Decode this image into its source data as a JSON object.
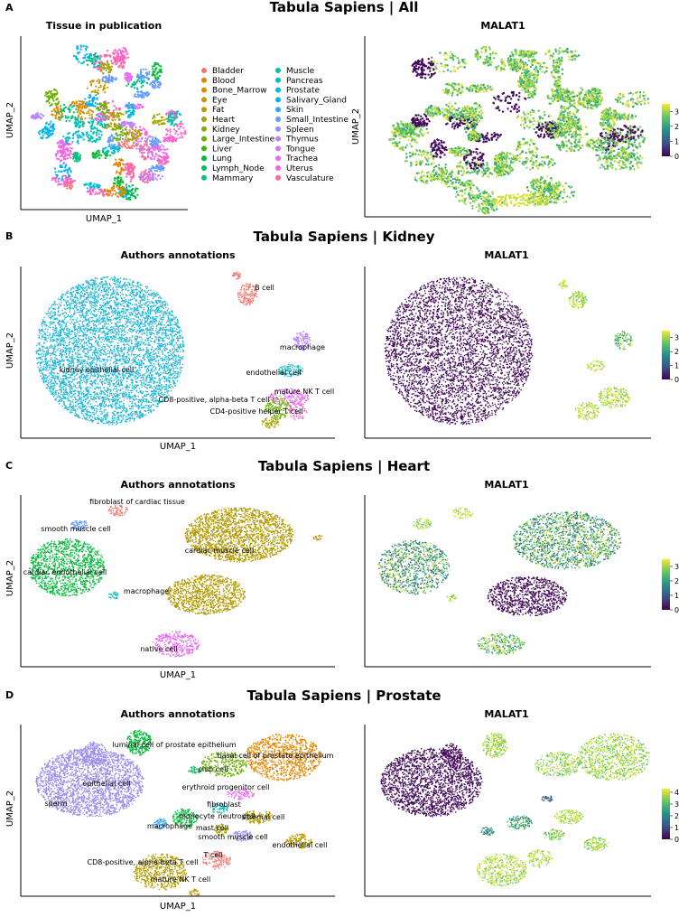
{
  "figure": {
    "panels": [
      {
        "letter": "A",
        "title": "Tabula Sapiens | All",
        "left_subtitle": "Tissue in publication",
        "right_subtitle": "MALAT1",
        "xlabel": "UMAP_1",
        "ylabel": "UMAP_2"
      },
      {
        "letter": "B",
        "title": "Tabula Sapiens | Kidney",
        "left_subtitle": "Authors annotations",
        "right_subtitle": "MALAT1",
        "xlabel": "UMAP_1",
        "ylabel": "UMAP_2"
      },
      {
        "letter": "C",
        "title": "Tabula Sapiens | Heart",
        "left_subtitle": "Authors annotations",
        "right_subtitle": "MALAT1",
        "xlabel": "UMAP_1",
        "ylabel": "UMAP_2"
      },
      {
        "letter": "D",
        "title": "Tabula Sapiens | Prostate",
        "left_subtitle": "Authors annotations",
        "right_subtitle": "MALAT1",
        "xlabel": "UMAP_1",
        "ylabel": "UMAP_2"
      }
    ]
  },
  "colors": {
    "viridis": [
      "#440154",
      "#3b528b",
      "#21918c",
      "#5ec962",
      "#fde725"
    ],
    "tissue": [
      "#f8766d",
      "#e58700",
      "#c99800",
      "#a3a500",
      "#6bb100",
      "#00ba38",
      "#00bf7d",
      "#00c0af",
      "#00bcd8",
      "#00b0f6",
      "#619cff",
      "#b983ff",
      "#e76bf3",
      "#fd61d1",
      "#ff67a4"
    ],
    "blue": "#1fb6d6",
    "olive": "#b39a00",
    "lavender": "#9b8cf0"
  },
  "chart_data": [
    {
      "type": "scatter",
      "panel": "A-left",
      "title": "Tissue in publication",
      "xlabel": "UMAP_1",
      "ylabel": "UMAP_2",
      "legend": {
        "column1": [
          "Bladder",
          "Blood",
          "Bone_Marrow",
          "Eye",
          "Fat",
          "Heart",
          "Kidney",
          "Large_Intestine",
          "Liver",
          "Lung",
          "Lymph_Node",
          "Mammary"
        ],
        "column2": [
          "Muscle",
          "Pancreas",
          "Prostate",
          "Salivary_Gland",
          "Skin",
          "Small_Intestine",
          "Spleen",
          "Thymus",
          "Tongue",
          "Trachea",
          "Uterus",
          "Vasculature"
        ],
        "colors1": [
          "#f8766d",
          "#e58700",
          "#d89000",
          "#c99800",
          "#b79f00",
          "#a3a500",
          "#85ad00",
          "#6bb100",
          "#39b600",
          "#00ba38",
          "#00bc59",
          "#00c08b"
        ],
        "colors2": [
          "#00c1a3",
          "#00bfc4",
          "#00bbdb",
          "#00b4ef",
          "#35a2ff",
          "#619cff",
          "#9590ff",
          "#b983ff",
          "#d874fd",
          "#e76bf3",
          "#f564e3",
          "#ff6c91"
        ]
      }
    },
    {
      "type": "scatter",
      "panel": "A-right",
      "title": "MALAT1",
      "colorbar": {
        "ticks": [
          0,
          1,
          2,
          3
        ],
        "range": [
          0,
          3.5
        ]
      }
    },
    {
      "type": "scatter",
      "panel": "B-left",
      "title": "Authors annotations",
      "labels": [
        "B cell",
        "macrophage",
        "endothelial cell",
        "kidney epithelial cell",
        "mature NK T cell",
        "CD8-positive, alpha-beta T cell",
        "CD4-positive helper T cell"
      ]
    },
    {
      "type": "scatter",
      "panel": "B-right",
      "title": "MALAT1",
      "colorbar": {
        "ticks": [
          0,
          1,
          2,
          3
        ],
        "range": [
          0,
          3.5
        ]
      }
    },
    {
      "type": "scatter",
      "panel": "C-left",
      "title": "Authors annotations",
      "labels": [
        "fibroblast of cardiac tissue",
        "smooth muscle cell",
        "cardiac muscle cell",
        "cardiac endothelial cell",
        "macrophage",
        "native cell"
      ]
    },
    {
      "type": "scatter",
      "panel": "C-right",
      "title": "MALAT1",
      "colorbar": {
        "ticks": [
          0,
          1,
          2,
          3
        ],
        "range": [
          0,
          3.5
        ]
      }
    },
    {
      "type": "scatter",
      "panel": "D-left",
      "title": "Authors annotations",
      "labels": [
        "luminal cell of prostate epithelium",
        "basal cell of prostate epithelium",
        "club cell",
        "epithelial cell",
        "erythroid progenitor cell",
        "sperm",
        "fibroblast",
        "monocyte",
        "neutrophil",
        "stromal cell",
        "macrophage",
        "mast cell",
        "smooth muscle cell",
        "endothelial cell",
        "T cell",
        "CD8-positive, alpha-beta T cell",
        "mature NK T cell"
      ]
    },
    {
      "type": "scatter",
      "panel": "D-right",
      "title": "MALAT1",
      "colorbar": {
        "ticks": [
          0,
          1,
          2,
          3,
          4
        ],
        "range": [
          0,
          4.3
        ]
      }
    }
  ]
}
